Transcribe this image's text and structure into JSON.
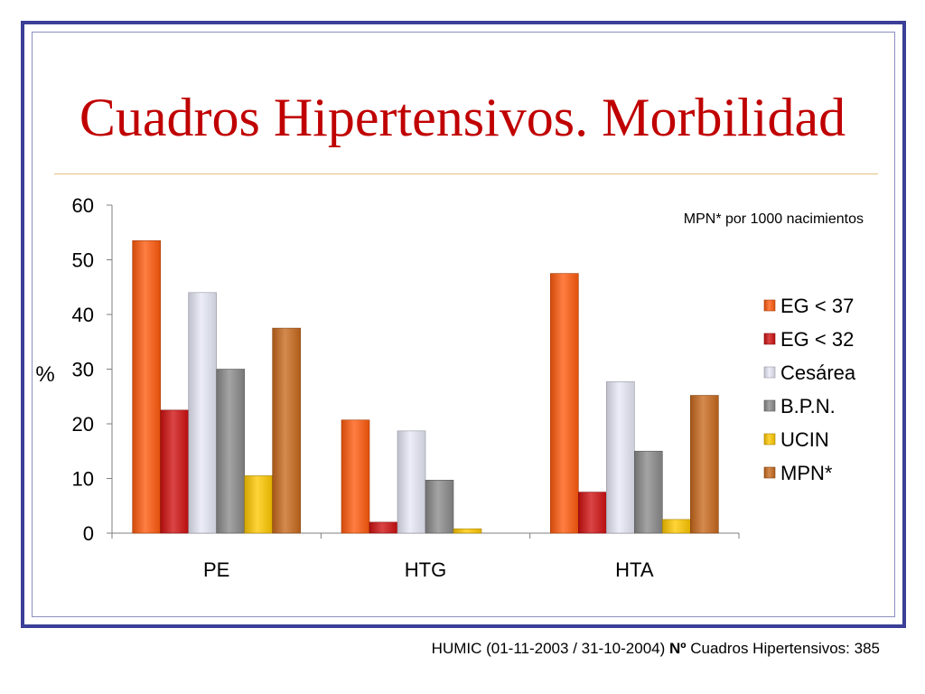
{
  "slide": {
    "title": "Cuadros Hipertensivos. Morbilidad",
    "footnote_prefix": "HUMIC (01-11-2003 / 31-10-2004) ",
    "footnote_bold": "Nº",
    "footnote_suffix": " Cuadros Hipertensivos: 385"
  },
  "colors": {
    "frame": "#3b3f97",
    "title": "#c00000",
    "rule": "#e3c27e"
  },
  "chart_data": {
    "type": "bar",
    "title": "",
    "xlabel": "",
    "ylabel": "%",
    "annotation": "MPN* por 1000 nacimientos",
    "ylim": [
      0,
      60
    ],
    "yticks": [
      0,
      10,
      20,
      30,
      40,
      50,
      60
    ],
    "categories": [
      "PE",
      "HTG",
      "HTA"
    ],
    "legend_position": "right",
    "grid": false,
    "series": [
      {
        "name": "EG < 37",
        "color": "#ff5a0d",
        "values": [
          53.5,
          20.7,
          47.5
        ]
      },
      {
        "name": "EG < 32",
        "color": "#d01010",
        "values": [
          22.5,
          2.0,
          7.5
        ]
      },
      {
        "name": "Cesárea",
        "color": "#e6e8f6",
        "values": [
          44.0,
          18.7,
          27.7
        ]
      },
      {
        "name": "B.P.N.",
        "color": "#8a8a8a",
        "values": [
          30.0,
          9.7,
          15.0
        ]
      },
      {
        "name": "UCIN",
        "color": "#ffc800",
        "values": [
          10.5,
          0.8,
          2.5
        ]
      },
      {
        "name": "MPN*",
        "color": "#c8691c",
        "values": [
          37.5,
          0,
          25.2
        ]
      }
    ]
  }
}
